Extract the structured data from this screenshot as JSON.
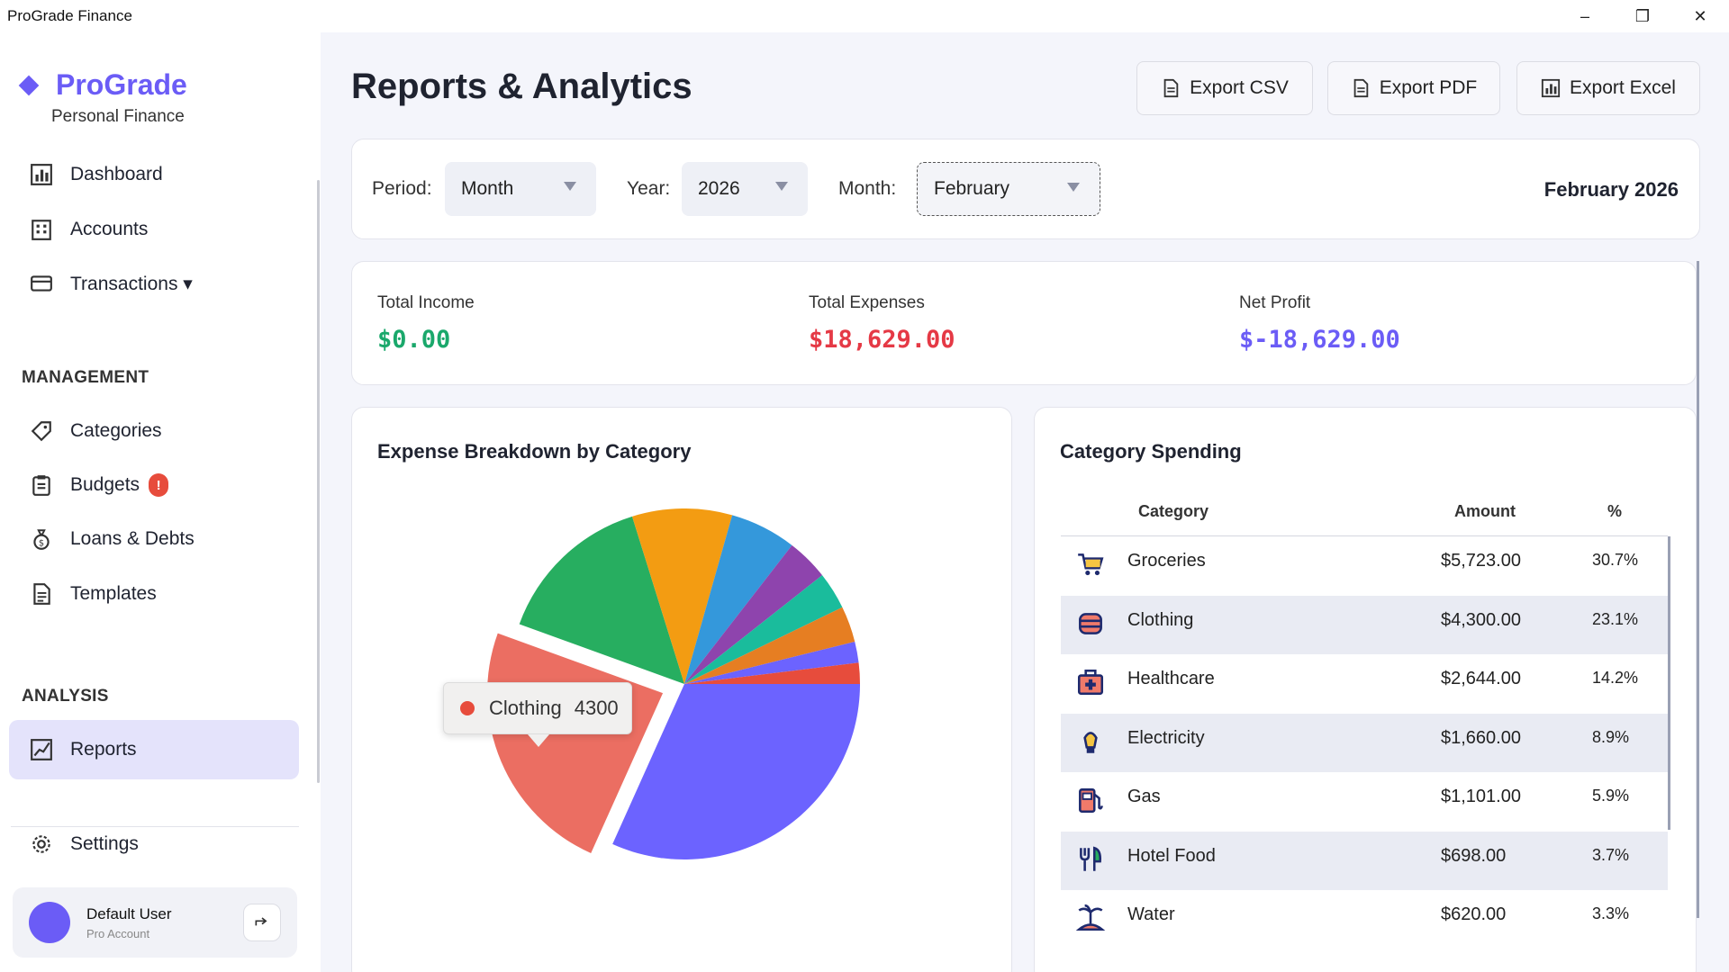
{
  "window": {
    "title": "ProGrade Finance",
    "minimize": "–",
    "restore": "❐",
    "close": "✕"
  },
  "brand": {
    "name": "ProGrade",
    "subtitle": "Personal Finance",
    "accent": "#6b5cf6"
  },
  "sidebar": {
    "items": [
      {
        "label": "Dashboard",
        "icon": "bar-chart-icon"
      },
      {
        "label": "Accounts",
        "icon": "building-icon"
      },
      {
        "label": "Transactions ▾",
        "icon": "credit-card-icon"
      }
    ],
    "management_label": "MANAGEMENT",
    "management_items": [
      {
        "label": "Categories",
        "icon": "tag-icon"
      },
      {
        "label": "Budgets",
        "icon": "clipboard-icon",
        "badge": "!"
      },
      {
        "label": "Loans & Debts",
        "icon": "money-bag-icon"
      },
      {
        "label": "Templates",
        "icon": "document-icon"
      }
    ],
    "analysis_label": "ANALYSIS",
    "analysis_items": [
      {
        "label": "Reports",
        "icon": "line-chart-icon",
        "active": true
      }
    ],
    "settings": {
      "label": "Settings",
      "icon": "gear-icon"
    }
  },
  "user": {
    "name": "Default User",
    "role": "Pro Account"
  },
  "page": {
    "title": "Reports & Analytics"
  },
  "exports": {
    "csv": "Export CSV",
    "pdf": "Export PDF",
    "excel": "Export Excel"
  },
  "filters": {
    "period_label": "Period:",
    "period_value": "Month",
    "year_label": "Year:",
    "year_value": "2026",
    "month_label": "Month:",
    "month_value": "February",
    "display": "February 2026"
  },
  "stats": {
    "income_label": "Total Income",
    "income_value": "$0.00",
    "income_color": "#1aa86b",
    "expenses_label": "Total Expenses",
    "expenses_value": "$18,629.00",
    "expenses_color": "#e53945",
    "profit_label": "Net Profit",
    "profit_value": "$-18,629.00",
    "profit_color": "#6b5cf6"
  },
  "pie_card": {
    "title": "Expense Breakdown by Category"
  },
  "tooltip": {
    "label": "Clothing",
    "value": "4300"
  },
  "chart_data": {
    "type": "pie",
    "slices": [
      {
        "label": "Groceries",
        "value": 5723,
        "color": "#6c63ff"
      },
      {
        "label": "Clothing",
        "value": 4300,
        "color": "#eb6e62",
        "exploded": true
      },
      {
        "label": "Healthcare",
        "value": 2644,
        "color": "#27ae60"
      },
      {
        "label": "Electricity",
        "value": 1660,
        "color": "#f39c12"
      },
      {
        "label": "Gas",
        "value": 1101,
        "color": "#3498db"
      },
      {
        "label": "Hotel Food",
        "value": 698,
        "color": "#8e44ad"
      },
      {
        "label": "Water",
        "value": 620,
        "color": "#1abc9c"
      },
      {
        "label": "",
        "value": 600,
        "color": "#e67e22"
      },
      {
        "label": "",
        "value": 350,
        "color": "#6c63ff"
      },
      {
        "label": "",
        "value": 350,
        "color": "#e74c3c"
      }
    ]
  },
  "table_card": {
    "title": "Category Spending",
    "headers": {
      "category": "Category",
      "amount": "Amount",
      "percent": "%"
    },
    "rows": [
      {
        "category": "Groceries",
        "amount": "$5,723.00",
        "percent": "30.7%",
        "icon": "shopping-cart-icon"
      },
      {
        "category": "Clothing",
        "amount": "$4,300.00",
        "percent": "23.1%",
        "icon": "clothing-icon"
      },
      {
        "category": "Healthcare",
        "amount": "$2,644.00",
        "percent": "14.2%",
        "icon": "medical-kit-icon"
      },
      {
        "category": "Electricity",
        "amount": "$1,660.00",
        "percent": "8.9%",
        "icon": "lightbulb-icon"
      },
      {
        "category": "Gas",
        "amount": "$1,101.00",
        "percent": "5.9%",
        "icon": "fuel-pump-icon"
      },
      {
        "category": "Hotel Food",
        "amount": "$698.00",
        "percent": "3.7%",
        "icon": "fork-knife-icon"
      },
      {
        "category": "Water",
        "amount": "$620.00",
        "percent": "3.3%",
        "icon": "island-icon"
      }
    ]
  }
}
